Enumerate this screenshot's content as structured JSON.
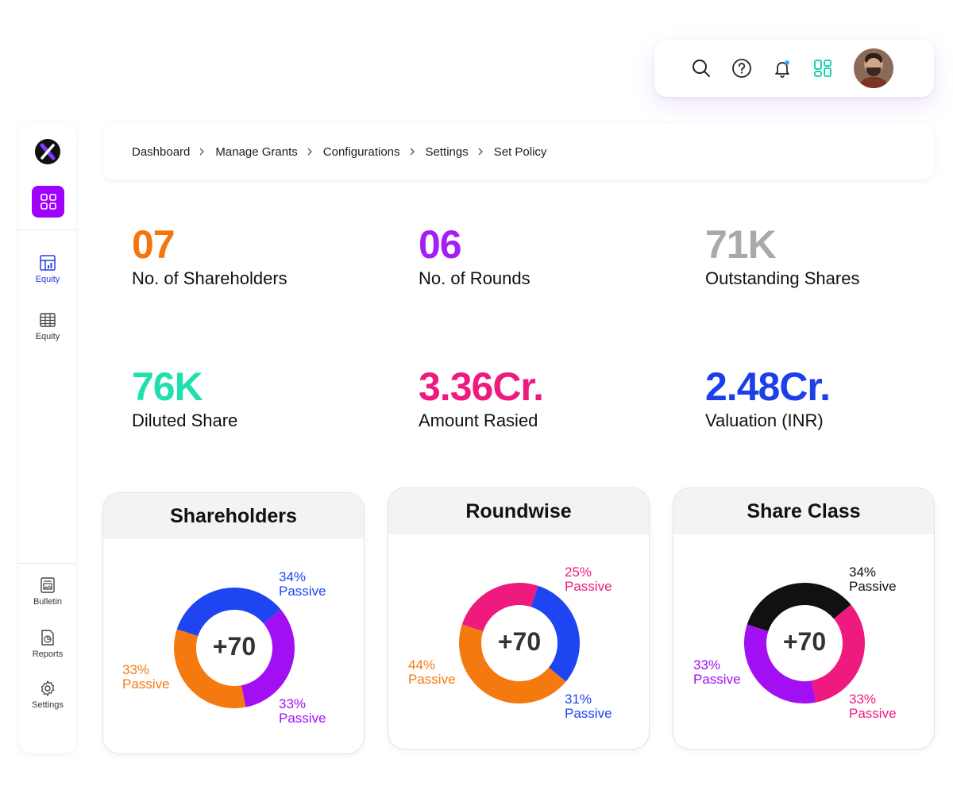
{
  "topbar": {
    "icons": [
      "search-icon",
      "help-icon",
      "bell-icon",
      "apps-icon"
    ],
    "avatar": "user-avatar"
  },
  "sidebar": {
    "logo": "brand-logo",
    "nav_top": [
      {
        "label": "Equity",
        "icon": "chart-dashboard-icon",
        "active": true
      },
      {
        "label": "Equity",
        "icon": "table-grid-icon",
        "active": false
      }
    ],
    "nav_bottom": [
      {
        "label": "Bulletin",
        "icon": "bulletin-icon"
      },
      {
        "label": "Reports",
        "icon": "reports-icon"
      },
      {
        "label": "Settings",
        "icon": "gear-icon"
      }
    ]
  },
  "breadcrumb": [
    "Dashboard",
    "Manage Grants",
    "Configurations",
    "Settings",
    "Set Policy"
  ],
  "stats": [
    {
      "value": "07",
      "label": "No. of Shareholders",
      "color": "#f4750e"
    },
    {
      "value": "06",
      "label": "No. of Rounds",
      "color": "#a61ff2"
    },
    {
      "value": "71K",
      "label": "Outstanding Shares",
      "color": "#a9a9a9"
    },
    {
      "value": "76K",
      "label": "Diluted Share",
      "color": "#1fe0ac"
    },
    {
      "value": "3.36Cr.",
      "label": "Amount Rasied",
      "color": "#ee1a7d"
    },
    {
      "value": "2.48Cr.",
      "label": "Valuation (INR)",
      "color": "#1b3fe8"
    }
  ],
  "chart_data": [
    {
      "type": "pie",
      "title": "Shareholders",
      "center_label": "+70",
      "slices": [
        {
          "pct": "34%",
          "name": "Passive",
          "value": 34,
          "color": "#1f45f2"
        },
        {
          "pct": "33%",
          "name": "Passive",
          "value": 33,
          "color": "#a20ff2"
        },
        {
          "pct": "33%",
          "name": "Passive",
          "value": 33,
          "color": "#f47a10"
        }
      ]
    },
    {
      "type": "pie",
      "title": "Roundwise",
      "center_label": "+70",
      "slices": [
        {
          "pct": "25%",
          "name": "Passive",
          "value": 25,
          "color": "#ee1a7d"
        },
        {
          "pct": "31%",
          "name": "Passive",
          "value": 31,
          "color": "#1f45f2"
        },
        {
          "pct": "44%",
          "name": "Passive",
          "value": 44,
          "color": "#f47a10"
        }
      ]
    },
    {
      "type": "pie",
      "title": "Share Class",
      "center_label": "+70",
      "slices": [
        {
          "pct": "34%",
          "name": "Passive",
          "value": 34,
          "color": "#111111"
        },
        {
          "pct": "33%",
          "name": "Passive",
          "value": 33,
          "color": "#ee1a7d"
        },
        {
          "pct": "33%",
          "name": "Passive",
          "value": 33,
          "color": "#a20ff2"
        }
      ]
    }
  ]
}
